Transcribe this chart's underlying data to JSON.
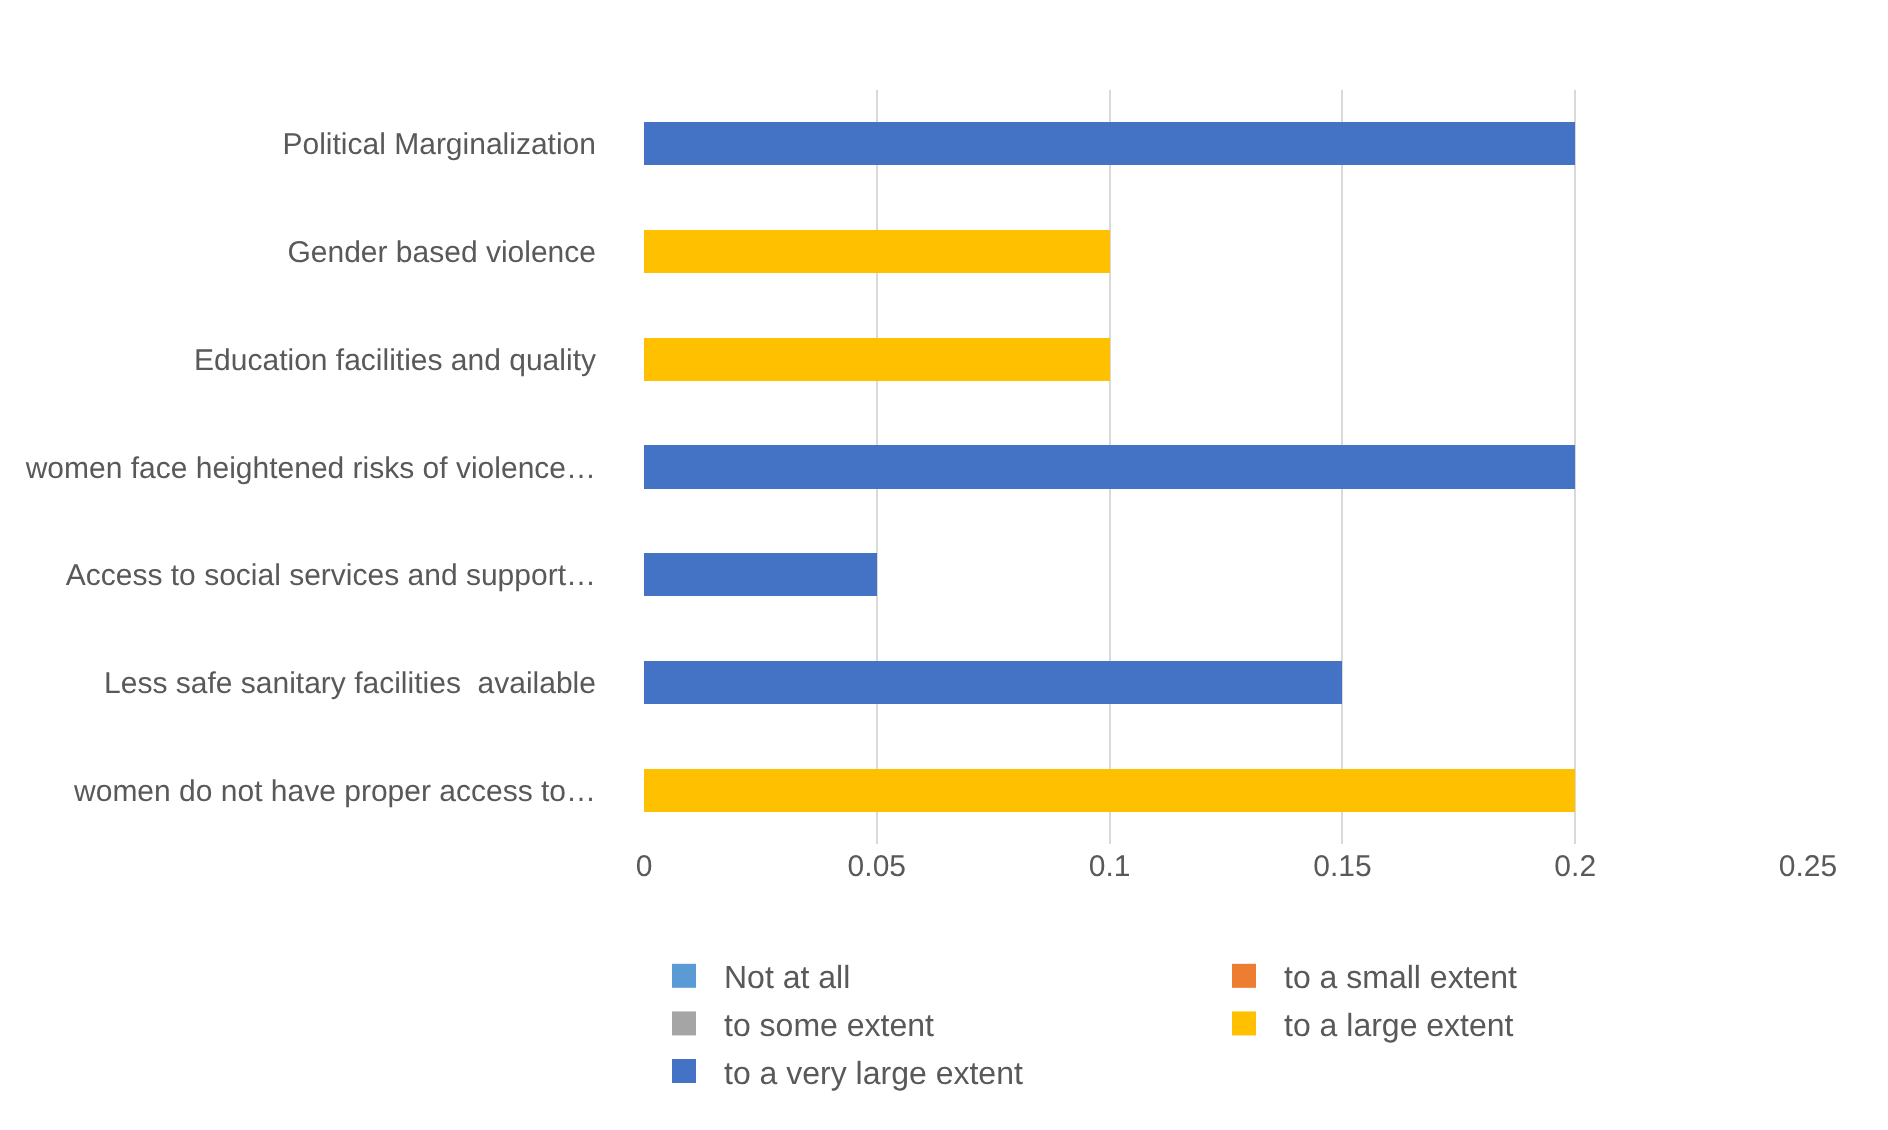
{
  "chart_data": {
    "type": "bar",
    "orientation": "horizontal",
    "stacked": true,
    "categories": [
      "Political Marginalization",
      "Gender based violence",
      "Education facilities and quality",
      "women face heightened risks of violence…",
      "Access to social services and support…",
      "Less safe sanitary facilities  available",
      "women do not have proper access to…"
    ],
    "series": [
      {
        "name": "Not at all",
        "color": "#5b9bd5",
        "values": [
          null,
          null,
          null,
          null,
          null,
          null,
          null
        ]
      },
      {
        "name": "to a small extent",
        "color": "#ed7d31",
        "values": [
          null,
          null,
          null,
          null,
          null,
          null,
          null
        ]
      },
      {
        "name": "to some extent",
        "color": "#a5a5a5",
        "values": [
          null,
          null,
          null,
          null,
          null,
          null,
          null
        ]
      },
      {
        "name": "to a large extent",
        "color": "#ffc000",
        "values": [
          null,
          0.1,
          0.1,
          null,
          null,
          null,
          0.2
        ]
      },
      {
        "name": "to a very large extent",
        "color": "#4472c4",
        "values": [
          0.2,
          null,
          null,
          0.2,
          0.05,
          0.15,
          null
        ]
      }
    ],
    "xlim": [
      0,
      0.25
    ],
    "xticks": [
      0,
      0.05,
      0.1,
      0.15,
      0.2,
      0.25
    ],
    "grid": "x",
    "legend": "bottom"
  }
}
